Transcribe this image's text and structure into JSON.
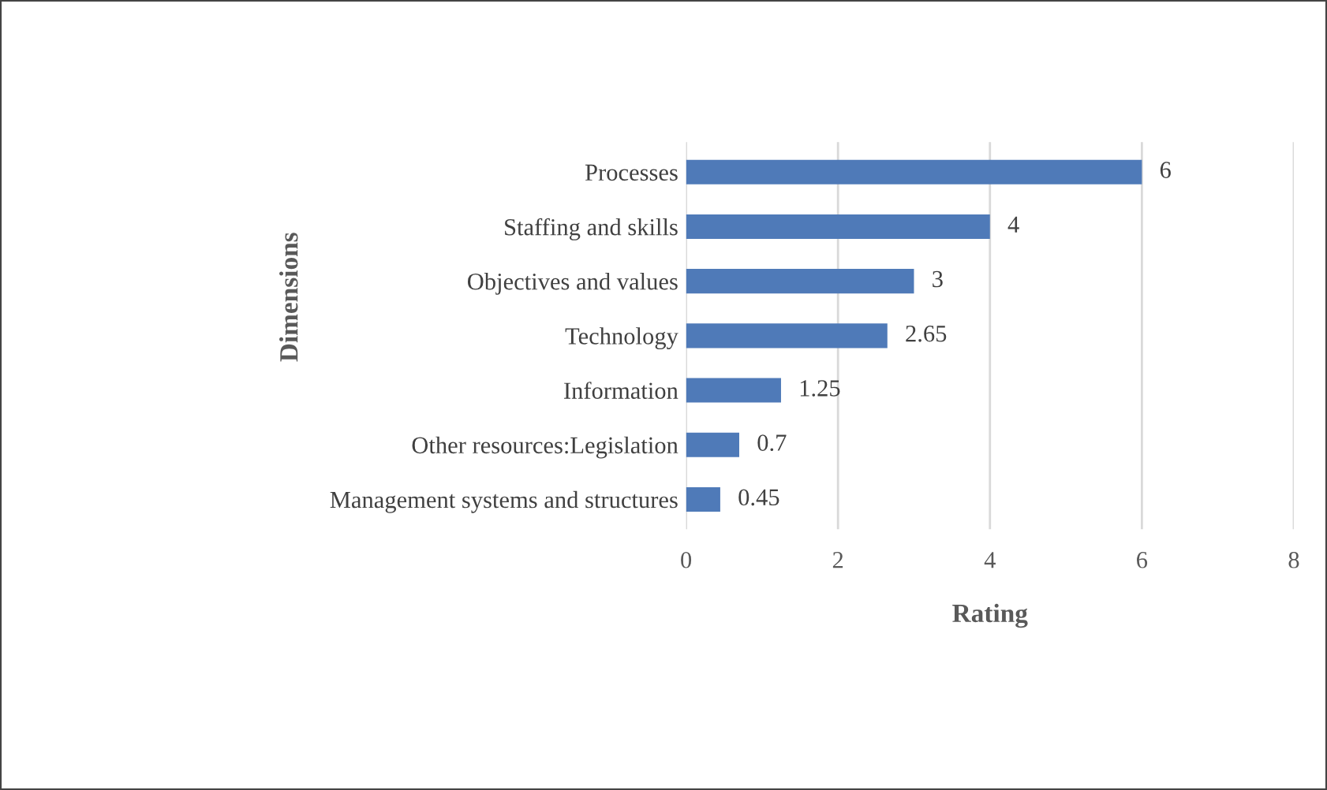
{
  "chart_data": {
    "type": "bar",
    "orientation": "horizontal",
    "xlabel": "Rating",
    "ylabel": "Dimensions",
    "categories": [
      "Processes",
      "Staffing and skills",
      "Objectives and values",
      "Technology",
      "Information",
      "Other resources:Legislation",
      "Management systems and structures"
    ],
    "values": [
      6,
      4,
      3,
      2.65,
      1.25,
      0.7,
      0.45
    ],
    "color": "#4f7ab8",
    "xlim": [
      0,
      8
    ],
    "xticks": [
      0,
      2,
      4,
      6,
      8
    ],
    "grid": "x",
    "data_labels": true
  }
}
